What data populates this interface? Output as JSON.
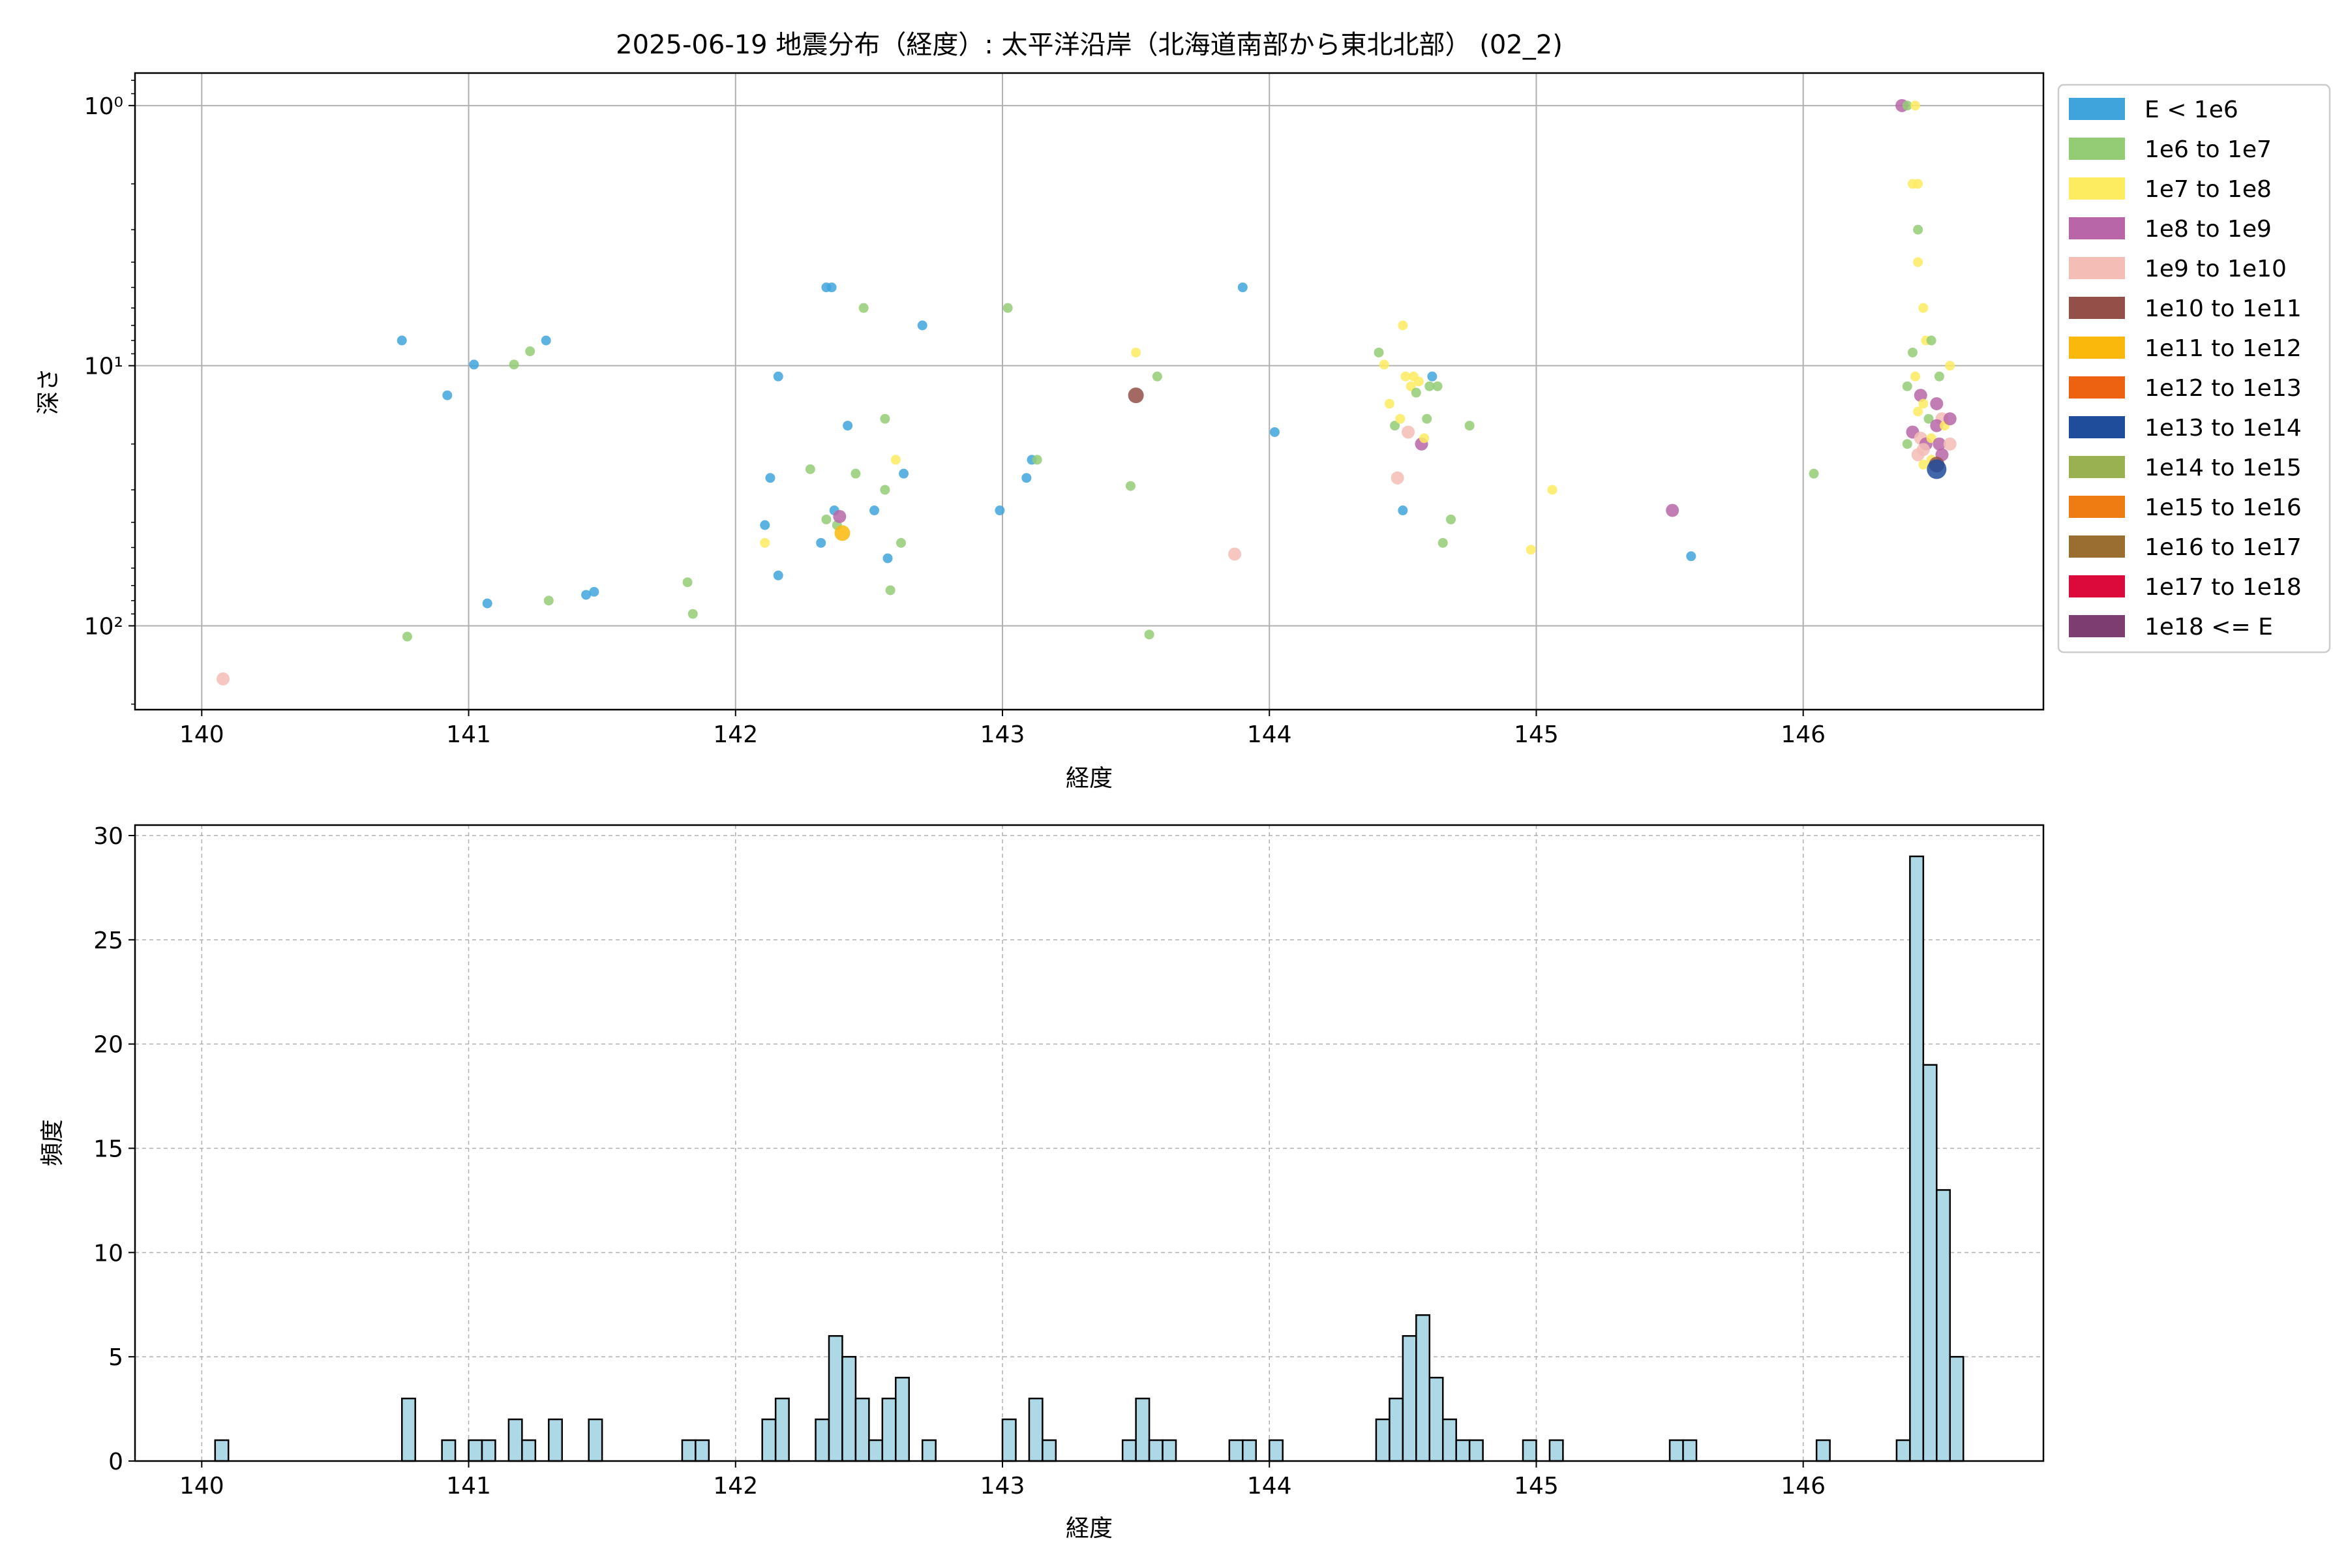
{
  "chart_data": [
    {
      "type": "scatter",
      "title": "2025-06-19 地震分布（経度）: 太平洋沿岸（北海道南部から東北北部） (02_2)",
      "xlabel": "経度",
      "ylabel": "深さ",
      "xlim": [
        139.75,
        146.9
      ],
      "ylim": [
        210,
        0.75
      ],
      "yscale": "log",
      "y_inverted": true,
      "grid": true,
      "xticks": [
        140,
        141,
        142,
        143,
        144,
        145,
        146
      ],
      "xtick_labels": [
        "140",
        "141",
        "142",
        "143",
        "144",
        "145",
        "146"
      ],
      "yticks": [
        1,
        10,
        100
      ],
      "ytick_labels": [
        "10⁰",
        "10¹",
        "10²"
      ],
      "legend": {
        "placement": "outside-right",
        "entries": [
          {
            "label": "E < 1e6",
            "color": "#3fa4dc"
          },
          {
            "label": "1e6 to 1e7",
            "color": "#93cc75"
          },
          {
            "label": "1e7 to 1e8",
            "color": "#fdeb60"
          },
          {
            "label": "1e8 to 1e9",
            "color": "#b866a8"
          },
          {
            "label": "1e9 to 1e10",
            "color": "#f4bdb5"
          },
          {
            "label": "1e10 to 1e11",
            "color": "#944f48"
          },
          {
            "label": "1e11 to 1e12",
            "color": "#f9b80b"
          },
          {
            "label": "1e12 to 1e13",
            "color": "#ec6211"
          },
          {
            "label": "1e13 to 1e14",
            "color": "#1f4c9b"
          },
          {
            "label": "1e14 to 1e15",
            "color": "#9ab152"
          },
          {
            "label": "1e15 to 1e16",
            "color": "#ef7c12"
          },
          {
            "label": "1e16 to 1e17",
            "color": "#9a6e30"
          },
          {
            "label": "1e17 to 1e18",
            "color": "#dc093b"
          },
          {
            "label": "1e18 <= E",
            "color": "#7d3d70"
          }
        ]
      },
      "points": [
        {
          "x": 140.08,
          "y": 160,
          "c": 4
        },
        {
          "x": 140.75,
          "y": 8,
          "c": 0
        },
        {
          "x": 140.77,
          "y": 110,
          "c": 1
        },
        {
          "x": 140.92,
          "y": 13,
          "c": 0
        },
        {
          "x": 141.02,
          "y": 9.9,
          "c": 0
        },
        {
          "x": 141.07,
          "y": 82,
          "c": 0
        },
        {
          "x": 141.17,
          "y": 9.9,
          "c": 1
        },
        {
          "x": 141.23,
          "y": 8.8,
          "c": 1
        },
        {
          "x": 141.29,
          "y": 8,
          "c": 0
        },
        {
          "x": 141.3,
          "y": 80,
          "c": 1
        },
        {
          "x": 141.44,
          "y": 76,
          "c": 0
        },
        {
          "x": 141.47,
          "y": 74,
          "c": 0
        },
        {
          "x": 141.82,
          "y": 68,
          "c": 1
        },
        {
          "x": 141.84,
          "y": 90,
          "c": 1
        },
        {
          "x": 142.11,
          "y": 41,
          "c": 0
        },
        {
          "x": 142.11,
          "y": 48,
          "c": 2
        },
        {
          "x": 142.13,
          "y": 27,
          "c": 0
        },
        {
          "x": 142.16,
          "y": 11,
          "c": 0
        },
        {
          "x": 142.16,
          "y": 64,
          "c": 0
        },
        {
          "x": 142.28,
          "y": 25,
          "c": 1
        },
        {
          "x": 142.32,
          "y": 48,
          "c": 0
        },
        {
          "x": 142.34,
          "y": 5,
          "c": 0
        },
        {
          "x": 142.34,
          "y": 39,
          "c": 1
        },
        {
          "x": 142.36,
          "y": 5,
          "c": 0
        },
        {
          "x": 142.37,
          "y": 36,
          "c": 0
        },
        {
          "x": 142.38,
          "y": 41,
          "c": 1
        },
        {
          "x": 142.39,
          "y": 38,
          "c": 3
        },
        {
          "x": 142.4,
          "y": 44,
          "c": 6
        },
        {
          "x": 142.42,
          "y": 17,
          "c": 0
        },
        {
          "x": 142.45,
          "y": 26,
          "c": 1
        },
        {
          "x": 142.48,
          "y": 6,
          "c": 1
        },
        {
          "x": 142.52,
          "y": 36,
          "c": 0
        },
        {
          "x": 142.56,
          "y": 16,
          "c": 1
        },
        {
          "x": 142.56,
          "y": 30,
          "c": 1
        },
        {
          "x": 142.57,
          "y": 55,
          "c": 0
        },
        {
          "x": 142.58,
          "y": 73,
          "c": 1
        },
        {
          "x": 142.6,
          "y": 23,
          "c": 2
        },
        {
          "x": 142.62,
          "y": 48,
          "c": 1
        },
        {
          "x": 142.63,
          "y": 26,
          "c": 0
        },
        {
          "x": 142.7,
          "y": 7,
          "c": 0
        },
        {
          "x": 142.99,
          "y": 36,
          "c": 0
        },
        {
          "x": 143.02,
          "y": 6,
          "c": 1
        },
        {
          "x": 143.09,
          "y": 27,
          "c": 0
        },
        {
          "x": 143.11,
          "y": 23,
          "c": 0
        },
        {
          "x": 143.13,
          "y": 23,
          "c": 1
        },
        {
          "x": 143.48,
          "y": 29,
          "c": 1
        },
        {
          "x": 143.5,
          "y": 8.9,
          "c": 2
        },
        {
          "x": 143.5,
          "y": 13,
          "c": 5
        },
        {
          "x": 143.55,
          "y": 108,
          "c": 1
        },
        {
          "x": 143.58,
          "y": 11,
          "c": 1
        },
        {
          "x": 143.87,
          "y": 53,
          "c": 4
        },
        {
          "x": 143.9,
          "y": 5,
          "c": 0
        },
        {
          "x": 144.02,
          "y": 18,
          "c": 0
        },
        {
          "x": 144.41,
          "y": 8.9,
          "c": 1
        },
        {
          "x": 144.43,
          "y": 9.9,
          "c": 2
        },
        {
          "x": 144.45,
          "y": 14,
          "c": 2
        },
        {
          "x": 144.47,
          "y": 17,
          "c": 1
        },
        {
          "x": 144.48,
          "y": 27,
          "c": 4
        },
        {
          "x": 144.49,
          "y": 16,
          "c": 2
        },
        {
          "x": 144.5,
          "y": 7,
          "c": 2
        },
        {
          "x": 144.5,
          "y": 36,
          "c": 0
        },
        {
          "x": 144.51,
          "y": 11,
          "c": 2
        },
        {
          "x": 144.52,
          "y": 18,
          "c": 4
        },
        {
          "x": 144.53,
          "y": 12,
          "c": 2
        },
        {
          "x": 144.54,
          "y": 11,
          "c": 2
        },
        {
          "x": 144.55,
          "y": 12.7,
          "c": 1
        },
        {
          "x": 144.56,
          "y": 11.5,
          "c": 2
        },
        {
          "x": 144.57,
          "y": 20,
          "c": 3
        },
        {
          "x": 144.58,
          "y": 19,
          "c": 2
        },
        {
          "x": 144.59,
          "y": 16,
          "c": 1
        },
        {
          "x": 144.6,
          "y": 12,
          "c": 1
        },
        {
          "x": 144.61,
          "y": 11,
          "c": 0
        },
        {
          "x": 144.63,
          "y": 12,
          "c": 1
        },
        {
          "x": 144.65,
          "y": 48,
          "c": 1
        },
        {
          "x": 144.68,
          "y": 39,
          "c": 1
        },
        {
          "x": 144.75,
          "y": 17,
          "c": 1
        },
        {
          "x": 144.98,
          "y": 51,
          "c": 2
        },
        {
          "x": 145.06,
          "y": 30,
          "c": 2
        },
        {
          "x": 145.51,
          "y": 36,
          "c": 3
        },
        {
          "x": 145.58,
          "y": 54,
          "c": 0
        },
        {
          "x": 146.04,
          "y": 26,
          "c": 1
        },
        {
          "x": 146.37,
          "y": 1,
          "c": 3
        },
        {
          "x": 146.39,
          "y": 1,
          "c": 1
        },
        {
          "x": 146.42,
          "y": 1,
          "c": 2
        },
        {
          "x": 146.41,
          "y": 2,
          "c": 2
        },
        {
          "x": 146.43,
          "y": 2,
          "c": 2
        },
        {
          "x": 146.43,
          "y": 3,
          "c": 1
        },
        {
          "x": 146.43,
          "y": 4,
          "c": 2
        },
        {
          "x": 146.45,
          "y": 6,
          "c": 2
        },
        {
          "x": 146.46,
          "y": 8,
          "c": 2
        },
        {
          "x": 146.48,
          "y": 8,
          "c": 1
        },
        {
          "x": 146.41,
          "y": 8.9,
          "c": 1
        },
        {
          "x": 146.55,
          "y": 10,
          "c": 2
        },
        {
          "x": 146.51,
          "y": 11,
          "c": 1
        },
        {
          "x": 146.42,
          "y": 11,
          "c": 2
        },
        {
          "x": 146.39,
          "y": 12,
          "c": 1
        },
        {
          "x": 146.44,
          "y": 13,
          "c": 3
        },
        {
          "x": 146.45,
          "y": 14,
          "c": 2
        },
        {
          "x": 146.5,
          "y": 14,
          "c": 3
        },
        {
          "x": 146.43,
          "y": 15,
          "c": 2
        },
        {
          "x": 146.47,
          "y": 16,
          "c": 1
        },
        {
          "x": 146.52,
          "y": 16,
          "c": 4
        },
        {
          "x": 146.5,
          "y": 17,
          "c": 3
        },
        {
          "x": 146.53,
          "y": 17,
          "c": 2
        },
        {
          "x": 146.55,
          "y": 16,
          "c": 3
        },
        {
          "x": 146.41,
          "y": 18,
          "c": 3
        },
        {
          "x": 146.44,
          "y": 19,
          "c": 4
        },
        {
          "x": 146.46,
          "y": 20,
          "c": 3
        },
        {
          "x": 146.48,
          "y": 19,
          "c": 2
        },
        {
          "x": 146.51,
          "y": 20,
          "c": 3
        },
        {
          "x": 146.55,
          "y": 20,
          "c": 4
        },
        {
          "x": 146.39,
          "y": 20,
          "c": 1
        },
        {
          "x": 146.43,
          "y": 22,
          "c": 4
        },
        {
          "x": 146.45,
          "y": 21,
          "c": 4
        },
        {
          "x": 146.48,
          "y": 23,
          "c": 2
        },
        {
          "x": 146.52,
          "y": 22,
          "c": 3
        },
        {
          "x": 146.45,
          "y": 24,
          "c": 2
        },
        {
          "x": 146.5,
          "y": 24,
          "c": 5
        },
        {
          "x": 146.5,
          "y": 25,
          "c": 8
        }
      ]
    },
    {
      "type": "bar",
      "xlabel": "経度",
      "ylabel": "頻度",
      "xlim": [
        139.75,
        146.9
      ],
      "ylim": [
        0,
        30.5
      ],
      "grid": true,
      "grid_style": "dashed",
      "bar_color": "#add8e6",
      "bar_edge": "#000000",
      "bin_width": 0.05,
      "xticks": [
        140,
        141,
        142,
        143,
        144,
        145,
        146
      ],
      "xtick_labels": [
        "140",
        "141",
        "142",
        "143",
        "144",
        "145",
        "146"
      ],
      "yticks": [
        0,
        5,
        10,
        15,
        20,
        25,
        30
      ],
      "ytick_labels": [
        "0",
        "5",
        "10",
        "15",
        "20",
        "25",
        "30"
      ],
      "bins": [
        {
          "x": 140.05,
          "value": 1
        },
        {
          "x": 140.75,
          "value": 3
        },
        {
          "x": 140.9,
          "value": 1
        },
        {
          "x": 141.0,
          "value": 1
        },
        {
          "x": 141.05,
          "value": 1
        },
        {
          "x": 141.15,
          "value": 2
        },
        {
          "x": 141.2,
          "value": 1
        },
        {
          "x": 141.3,
          "value": 2
        },
        {
          "x": 141.45,
          "value": 2
        },
        {
          "x": 141.8,
          "value": 1
        },
        {
          "x": 141.85,
          "value": 1
        },
        {
          "x": 142.1,
          "value": 2
        },
        {
          "x": 142.15,
          "value": 3
        },
        {
          "x": 142.3,
          "value": 2
        },
        {
          "x": 142.35,
          "value": 6
        },
        {
          "x": 142.4,
          "value": 5
        },
        {
          "x": 142.45,
          "value": 3
        },
        {
          "x": 142.5,
          "value": 1
        },
        {
          "x": 142.55,
          "value": 3
        },
        {
          "x": 142.6,
          "value": 4
        },
        {
          "x": 142.7,
          "value": 1
        },
        {
          "x": 143.0,
          "value": 2
        },
        {
          "x": 143.1,
          "value": 3
        },
        {
          "x": 143.15,
          "value": 1
        },
        {
          "x": 143.45,
          "value": 1
        },
        {
          "x": 143.5,
          "value": 3
        },
        {
          "x": 143.55,
          "value": 1
        },
        {
          "x": 143.6,
          "value": 1
        },
        {
          "x": 143.85,
          "value": 1
        },
        {
          "x": 143.9,
          "value": 1
        },
        {
          "x": 144.0,
          "value": 1
        },
        {
          "x": 144.4,
          "value": 2
        },
        {
          "x": 144.45,
          "value": 3
        },
        {
          "x": 144.5,
          "value": 6
        },
        {
          "x": 144.55,
          "value": 7
        },
        {
          "x": 144.6,
          "value": 4
        },
        {
          "x": 144.65,
          "value": 2
        },
        {
          "x": 144.7,
          "value": 1
        },
        {
          "x": 144.75,
          "value": 1
        },
        {
          "x": 144.95,
          "value": 1
        },
        {
          "x": 145.05,
          "value": 1
        },
        {
          "x": 145.5,
          "value": 1
        },
        {
          "x": 145.55,
          "value": 1
        },
        {
          "x": 146.05,
          "value": 1
        },
        {
          "x": 146.35,
          "value": 1
        },
        {
          "x": 146.4,
          "value": 29
        },
        {
          "x": 146.45,
          "value": 19
        },
        {
          "x": 146.5,
          "value": 13
        },
        {
          "x": 146.55,
          "value": 5
        }
      ]
    }
  ]
}
